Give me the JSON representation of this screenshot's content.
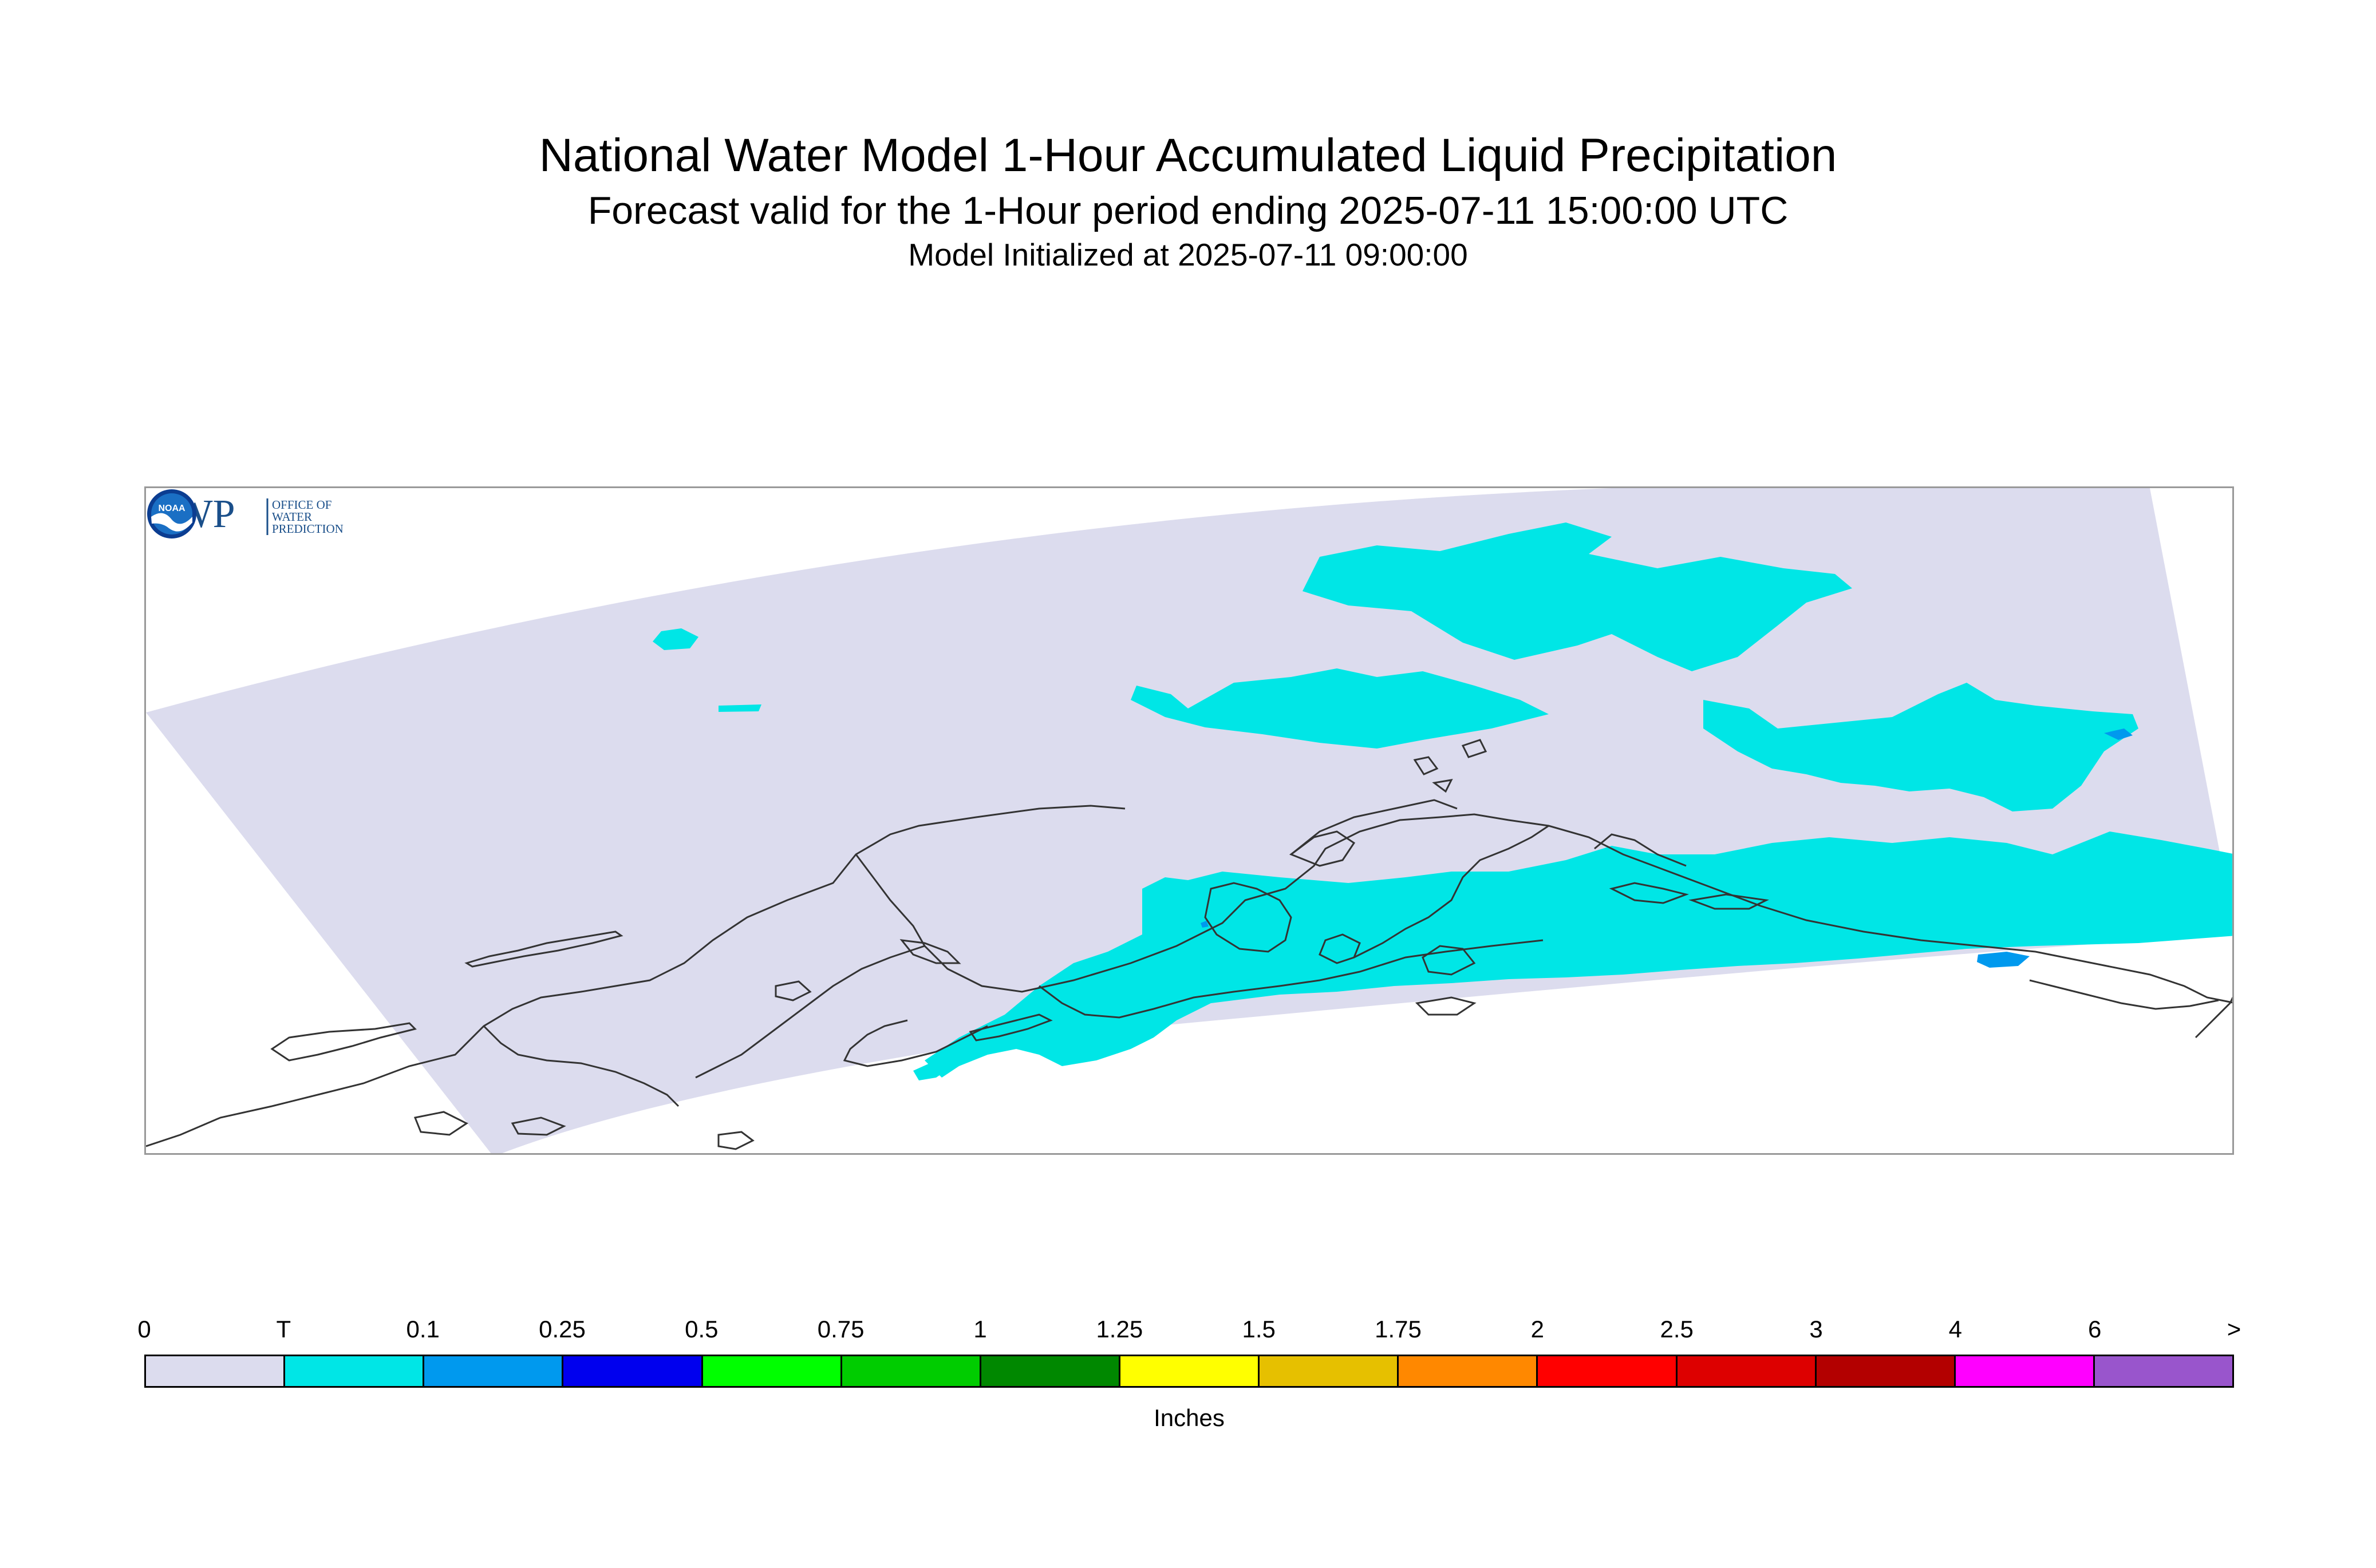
{
  "title": "National Water Model 1-Hour Accumulated Liquid Precipitation",
  "subtitle": "Forecast valid for the 1-Hour period ending 2025-07-11 15:00:00 UTC",
  "init_text": "Model Initialized at 2025-07-11 09:00:00",
  "map": {
    "domain_color": "#dcdcee",
    "coast_color": "#333333",
    "trace_color": "#00e6e6",
    "light_color": "#0099ee",
    "logos": {
      "owp": {
        "text": "OWP",
        "sub_lines": [
          "OFFICE OF",
          "WATER",
          "PREDICTION"
        ],
        "color": "#1a4f8a"
      },
      "noaa": {
        "text": "NOAA",
        "color": "#1a6fc4"
      }
    }
  },
  "legend": {
    "labels": [
      "0",
      "T",
      "0.1",
      "0.25",
      "0.5",
      "0.75",
      "1",
      "1.25",
      "1.5",
      "1.75",
      "2",
      "2.5",
      "3",
      "4",
      "6",
      ">"
    ],
    "colors": [
      "#dcdcee",
      "#00e6e6",
      "#0099ee",
      "#0000ee",
      "#00ff00",
      "#00cc00",
      "#008800",
      "#ffff00",
      "#e6c000",
      "#ff8800",
      "#ff0000",
      "#dd0000",
      "#b30000",
      "#ff00ff",
      "#9955cc"
    ],
    "units": "Inches"
  }
}
